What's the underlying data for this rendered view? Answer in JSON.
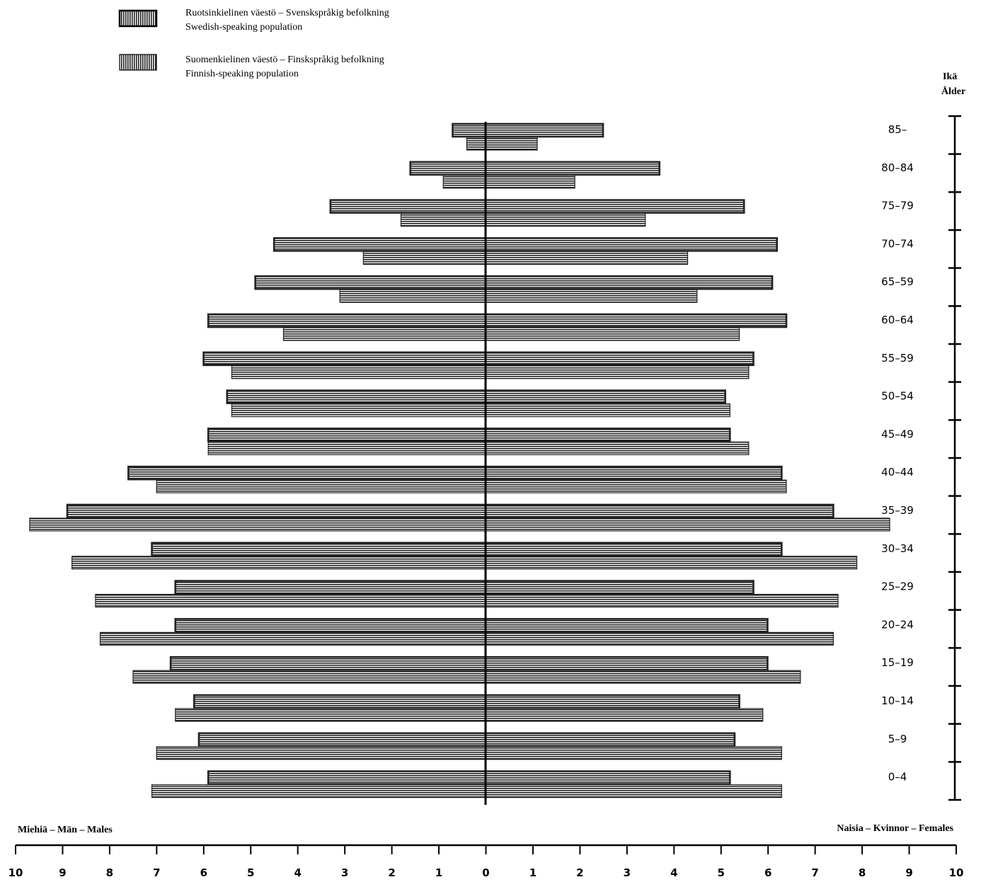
{
  "legend": {
    "swedish": {
      "line1": "Ruotsinkielinen väestö – Svenskspråkig befolkning",
      "line2": "Swedish-speaking population"
    },
    "finnish": {
      "line1": "Suomenkielinen väestö – Finskspråkig befolkning",
      "line2": "Finnish-speaking population"
    }
  },
  "age_axis_title": {
    "line1": "Ikä",
    "line2": "Ålder"
  },
  "males_label": "Miehiä – Män – Males",
  "females_label": "Naisia – Kvinnor – Females",
  "colors": {
    "bar": "#222222",
    "stripe": "#ffffff",
    "axis": "#000000"
  },
  "chart_data": {
    "type": "bar",
    "orientation": "horizontal-population-pyramid",
    "categories": [
      "85–",
      "80–84",
      "75–79",
      "70–74",
      "65–59",
      "60–64",
      "55–59",
      "50–54",
      "45–49",
      "40–44",
      "35–39",
      "30–34",
      "25–29",
      "20–24",
      "15–19",
      "10–14",
      "5–9",
      "0–4"
    ],
    "x_ticks": [
      10,
      9,
      8,
      7,
      6,
      5,
      4,
      3,
      2,
      1,
      0,
      1,
      2,
      3,
      4,
      5,
      6,
      7,
      8,
      9,
      10
    ],
    "xlim": [
      -10,
      10
    ],
    "series": [
      {
        "name": "Ruotsinkielinen väestö – Svenskspråkig befolkning",
        "group": "swedish",
        "sex": "male",
        "values": [
          0.7,
          1.6,
          3.3,
          4.5,
          4.9,
          5.9,
          6.0,
          5.5,
          5.9,
          7.6,
          8.9,
          7.1,
          6.6,
          6.6,
          6.7,
          6.2,
          6.1,
          5.9
        ]
      },
      {
        "name": "Suomenkielinen väestö – Finskspråkig befolkning",
        "group": "finnish",
        "sex": "male",
        "values": [
          0.4,
          0.9,
          1.8,
          2.6,
          3.1,
          4.3,
          5.4,
          5.4,
          5.9,
          7.0,
          9.7,
          8.8,
          8.3,
          8.2,
          7.5,
          6.6,
          7.0,
          7.1
        ]
      },
      {
        "name": "Ruotsinkielinen väestö – Svenskspråkig befolkning",
        "group": "swedish",
        "sex": "female",
        "values": [
          2.5,
          3.7,
          5.5,
          6.2,
          6.1,
          6.4,
          5.7,
          5.1,
          5.2,
          6.3,
          7.4,
          6.3,
          5.7,
          6.0,
          6.0,
          5.4,
          5.3,
          5.2
        ]
      },
      {
        "name": "Suomenkielinen väestö – Finskspråkig befolkning",
        "group": "finnish",
        "sex": "female",
        "values": [
          1.1,
          1.9,
          3.4,
          4.3,
          4.5,
          5.4,
          5.6,
          5.2,
          5.6,
          6.4,
          8.6,
          7.9,
          7.5,
          7.4,
          6.7,
          5.9,
          6.3,
          6.3
        ]
      }
    ],
    "legend_position": "top-left",
    "grid": false
  }
}
